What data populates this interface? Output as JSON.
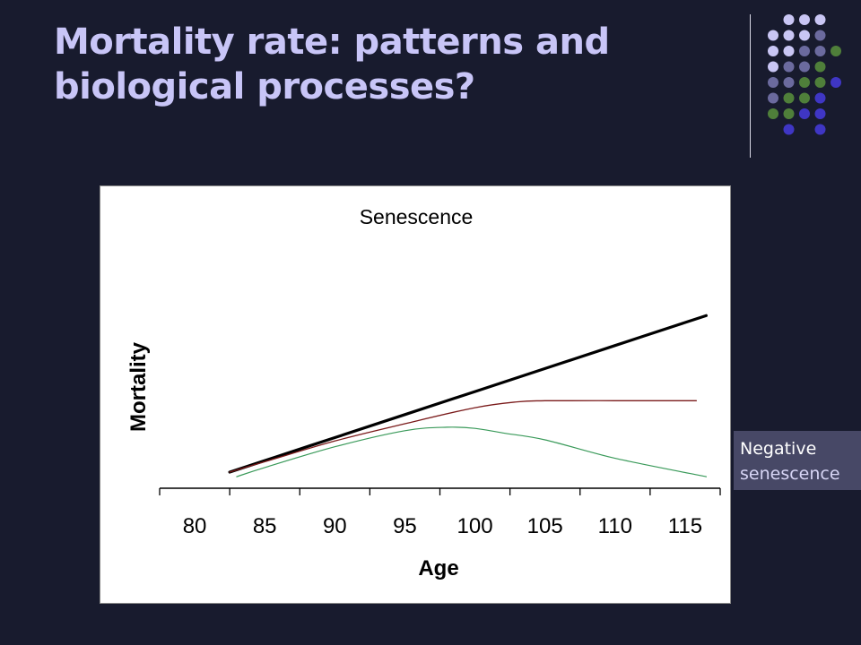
{
  "slide": {
    "title_line1": "Mortality rate: patterns and",
    "title_line2": "biological processes?"
  },
  "legend": {
    "line1": "Negative",
    "line2": "senescence"
  },
  "colors": {
    "background": "#181b2e",
    "title": "#c8c5f7",
    "dot_light": "#c9c6f4",
    "dot_mid": "#6b6a9e",
    "dot_green": "#4f7f3a",
    "dot_blue": "#3f36c4"
  },
  "chart_data": {
    "type": "line",
    "title": "Senescence",
    "xlabel": "Age",
    "ylabel": "Mortality",
    "xlim": [
      77.5,
      117.5
    ],
    "ylim": [
      0,
      1
    ],
    "x_ticks": [
      80,
      85,
      90,
      95,
      100,
      105,
      110,
      115
    ],
    "grid": false,
    "series": [
      {
        "color": "#000000",
        "x": [
          82.5,
          85,
          90,
          95,
          100,
          105,
          110,
          115,
          116.5
        ],
        "y": [
          0.07,
          0.12,
          0.22,
          0.32,
          0.42,
          0.52,
          0.62,
          0.72,
          0.75
        ]
      },
      {
        "color": "#7a1a1a",
        "x": [
          82.5,
          85,
          90,
          95,
          100,
          103,
          105,
          110,
          115.8
        ],
        "y": [
          0.07,
          0.115,
          0.205,
          0.28,
          0.35,
          0.375,
          0.38,
          0.38,
          0.38
        ]
      },
      {
        "color": "#3a9a5a",
        "x": [
          83,
          85,
          90,
          95,
          98,
          100,
          102,
          105,
          110,
          116.5
        ],
        "y": [
          0.05,
          0.09,
          0.18,
          0.25,
          0.265,
          0.26,
          0.24,
          0.21,
          0.13,
          0.05
        ]
      }
    ]
  }
}
